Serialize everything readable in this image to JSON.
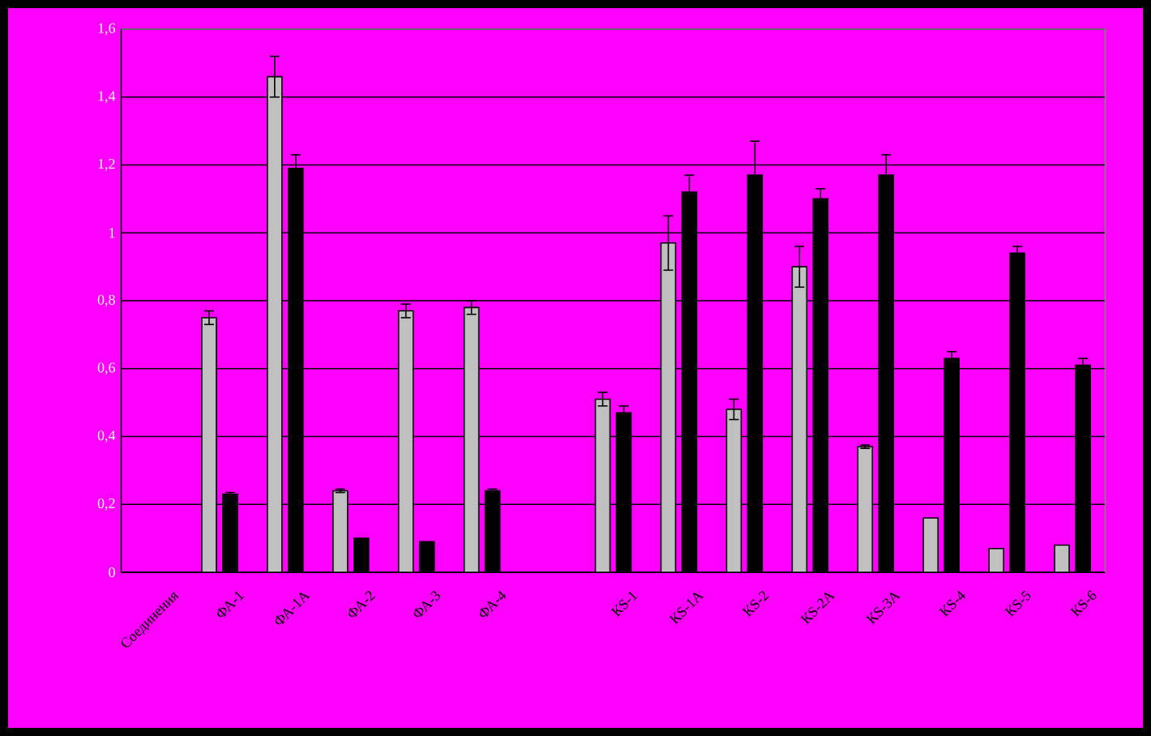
{
  "chart_data": {
    "type": "bar",
    "categories": [
      "Соединения",
      "ФА-1",
      "ФА-1А",
      "ФА-2",
      "ФА-3",
      "ФА-4",
      null,
      "КS-1",
      "КS-1А",
      "КS-2",
      "КS-2А",
      "КS-3А",
      "КS-4",
      "КS-5",
      "КS-6"
    ],
    "series": [
      {
        "color": "#c0c0c0",
        "values": [
          null,
          0.75,
          1.46,
          0.24,
          0.77,
          0.78,
          null,
          0.51,
          0.97,
          0.48,
          0.9,
          0.37,
          0.16,
          0.07,
          0.08
        ],
        "errors": [
          null,
          0.02,
          0.06,
          0.005,
          0.02,
          0.02,
          null,
          0.02,
          0.08,
          0.03,
          0.06,
          0.005,
          null,
          null,
          null
        ]
      },
      {
        "color": "#000000",
        "values": [
          null,
          0.23,
          1.19,
          0.1,
          0.09,
          0.24,
          null,
          0.47,
          1.12,
          1.17,
          1.1,
          1.17,
          0.63,
          0.94,
          0.61
        ],
        "errors": [
          null,
          0.005,
          0.04,
          null,
          null,
          0.005,
          null,
          0.02,
          0.05,
          0.1,
          0.03,
          0.06,
          0.02,
          0.02,
          0.02
        ]
      }
    ],
    "ylim": [
      0,
      1.6
    ],
    "yticks": [
      0,
      {
        "value": 0.2,
        "label": "0,2"
      },
      {
        "value": 0.4,
        "label": "0,4"
      },
      {
        "value": 0.6,
        "label": "0,6"
      },
      {
        "value": 0.8,
        "label": "0,8"
      },
      1,
      {
        "value": 1.2,
        "label": "1,2"
      },
      {
        "value": 1.4,
        "label": "1,4"
      },
      {
        "value": 1.6,
        "label": "1,6"
      }
    ],
    "grid": "y"
  }
}
